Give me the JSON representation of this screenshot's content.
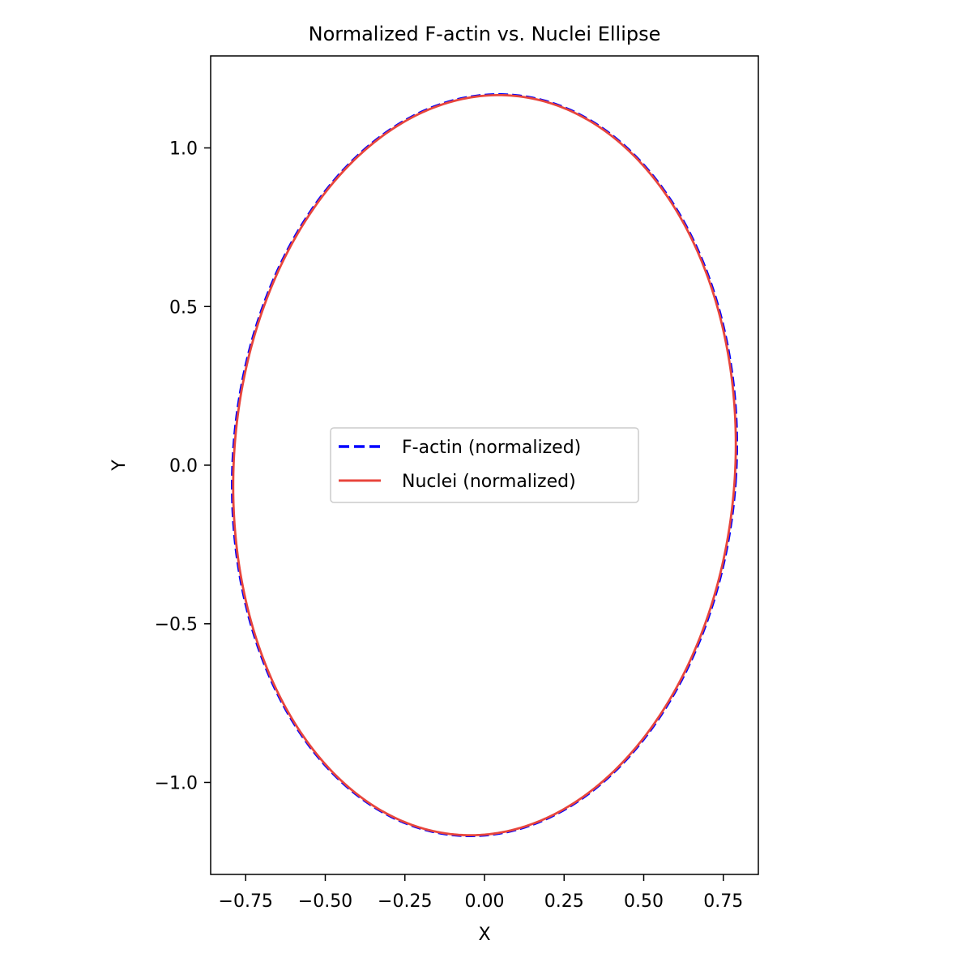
{
  "chart_data": {
    "type": "line",
    "title": "Normalized F-actin vs. Nuclei Ellipse",
    "xlabel": "X",
    "ylabel": "Y",
    "xlim": [
      -0.86,
      0.86
    ],
    "ylim": [
      -1.29,
      1.29
    ],
    "grid": false,
    "legend_position": "center",
    "xticks": [
      -0.75,
      -0.5,
      -0.25,
      0.0,
      0.25,
      0.5,
      0.75
    ],
    "xtick_labels": [
      "−0.75",
      "−0.50",
      "−0.25",
      "0.00",
      "0.25",
      "0.50",
      "0.75"
    ],
    "yticks": [
      -1.0,
      -0.5,
      0.0,
      0.5,
      1.0
    ],
    "ytick_labels": [
      "−1.0",
      "−0.5",
      "0.0",
      "0.5",
      "1.0"
    ],
    "series": [
      {
        "name": "F-actin (normalized)",
        "color": "#0000ff",
        "linestyle": "dashed",
        "ellipse": {
          "a": 0.79,
          "b": 1.17,
          "tilt_deg": -4.0
        }
      },
      {
        "name": "Nuclei (normalized)",
        "color": "#e8453c",
        "linestyle": "solid",
        "ellipse": {
          "a": 0.787,
          "b": 1.168,
          "tilt_deg": -4.0
        }
      }
    ]
  }
}
